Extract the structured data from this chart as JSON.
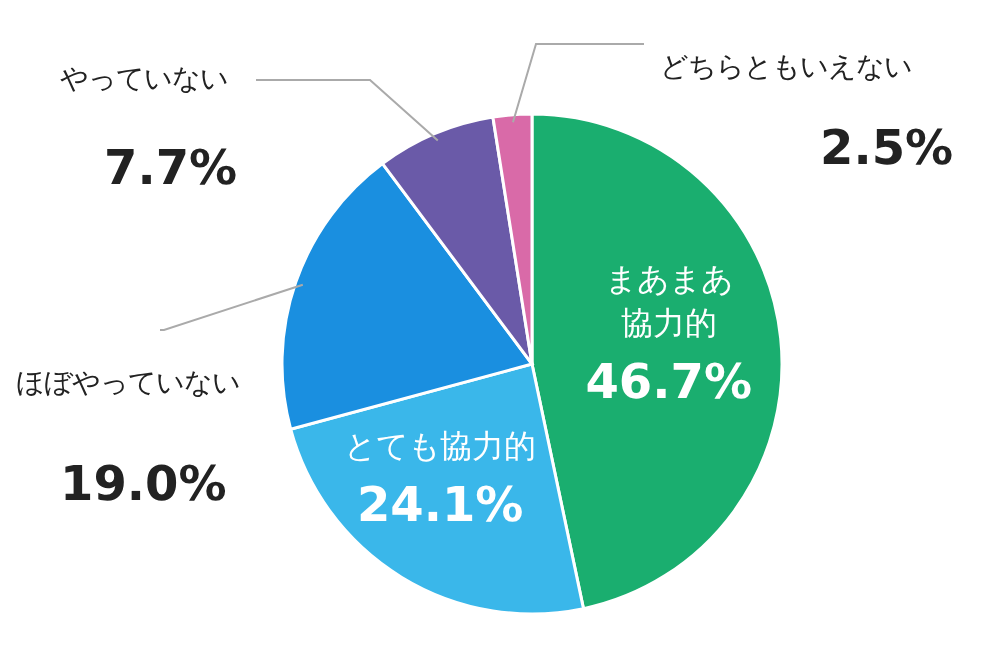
{
  "chart_data": {
    "type": "pie",
    "categories": [
      "まあまあ協力的",
      "とても協力的",
      "ほぼやっていない",
      "やっていない",
      "どちらともいえない"
    ],
    "values": [
      46.7,
      24.1,
      19.0,
      7.7,
      2.5
    ],
    "value_labels": [
      "46.7%",
      "24.1%",
      "19.0%",
      "7.7%",
      "2.5%"
    ],
    "colors": [
      "#1aae6f",
      "#3ab7ea",
      "#1a8fe0",
      "#6a5aa8",
      "#d96aa8"
    ]
  }
}
